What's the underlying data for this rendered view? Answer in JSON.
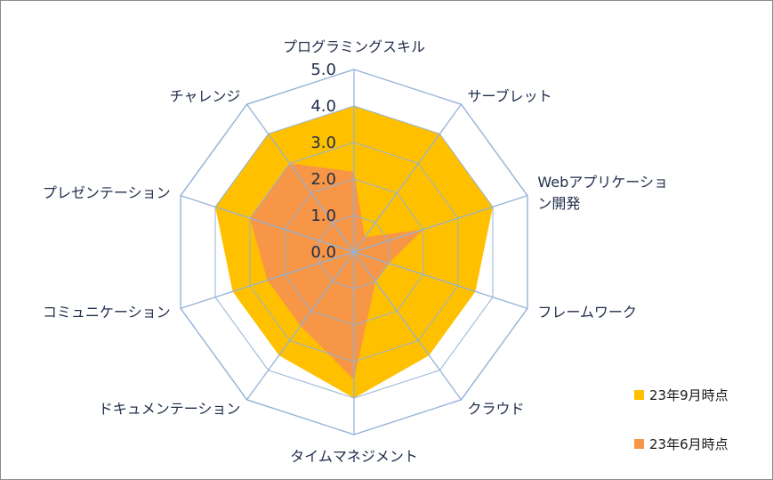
{
  "chart_data": {
    "type": "radar",
    "categories": [
      "プログラミングスキル",
      "サーブレット",
      "Webアプリケーション開発",
      "フレームワーク",
      "クラウド",
      "タイムマネジメント",
      "ドキュメンテーション",
      "コミュニケーション",
      "プレゼンテーション",
      "チャレンジ"
    ],
    "category_display_lines": [
      [
        "プログラミングスキル"
      ],
      [
        "サーブレット"
      ],
      [
        "Webアプリケーショ",
        "ン開発"
      ],
      [
        "フレームワーク"
      ],
      [
        "クラウド"
      ],
      [
        "タイムマネジメント"
      ],
      [
        "ドキュメンテーション"
      ],
      [
        "コミュニケーション"
      ],
      [
        "プレゼンテーション"
      ],
      [
        "チャレンジ"
      ]
    ],
    "series": [
      {
        "name": "23年9月時点",
        "color": "#FFC000",
        "values": [
          4.0,
          4.0,
          4.0,
          3.5,
          3.5,
          4.0,
          3.5,
          3.5,
          4.0,
          4.0
        ]
      },
      {
        "name": "23年6月時点",
        "color": "#F79646",
        "values": [
          2.2,
          0.5,
          2.0,
          1.0,
          1.0,
          3.5,
          2.5,
          2.5,
          3.0,
          3.0
        ]
      }
    ],
    "rlim": [
      0.0,
      5.0
    ],
    "ticks": [
      "0.0",
      "1.0",
      "2.0",
      "3.0",
      "4.0",
      "5.0"
    ],
    "grid_color": "#95B3D7",
    "legend_position": "right"
  }
}
